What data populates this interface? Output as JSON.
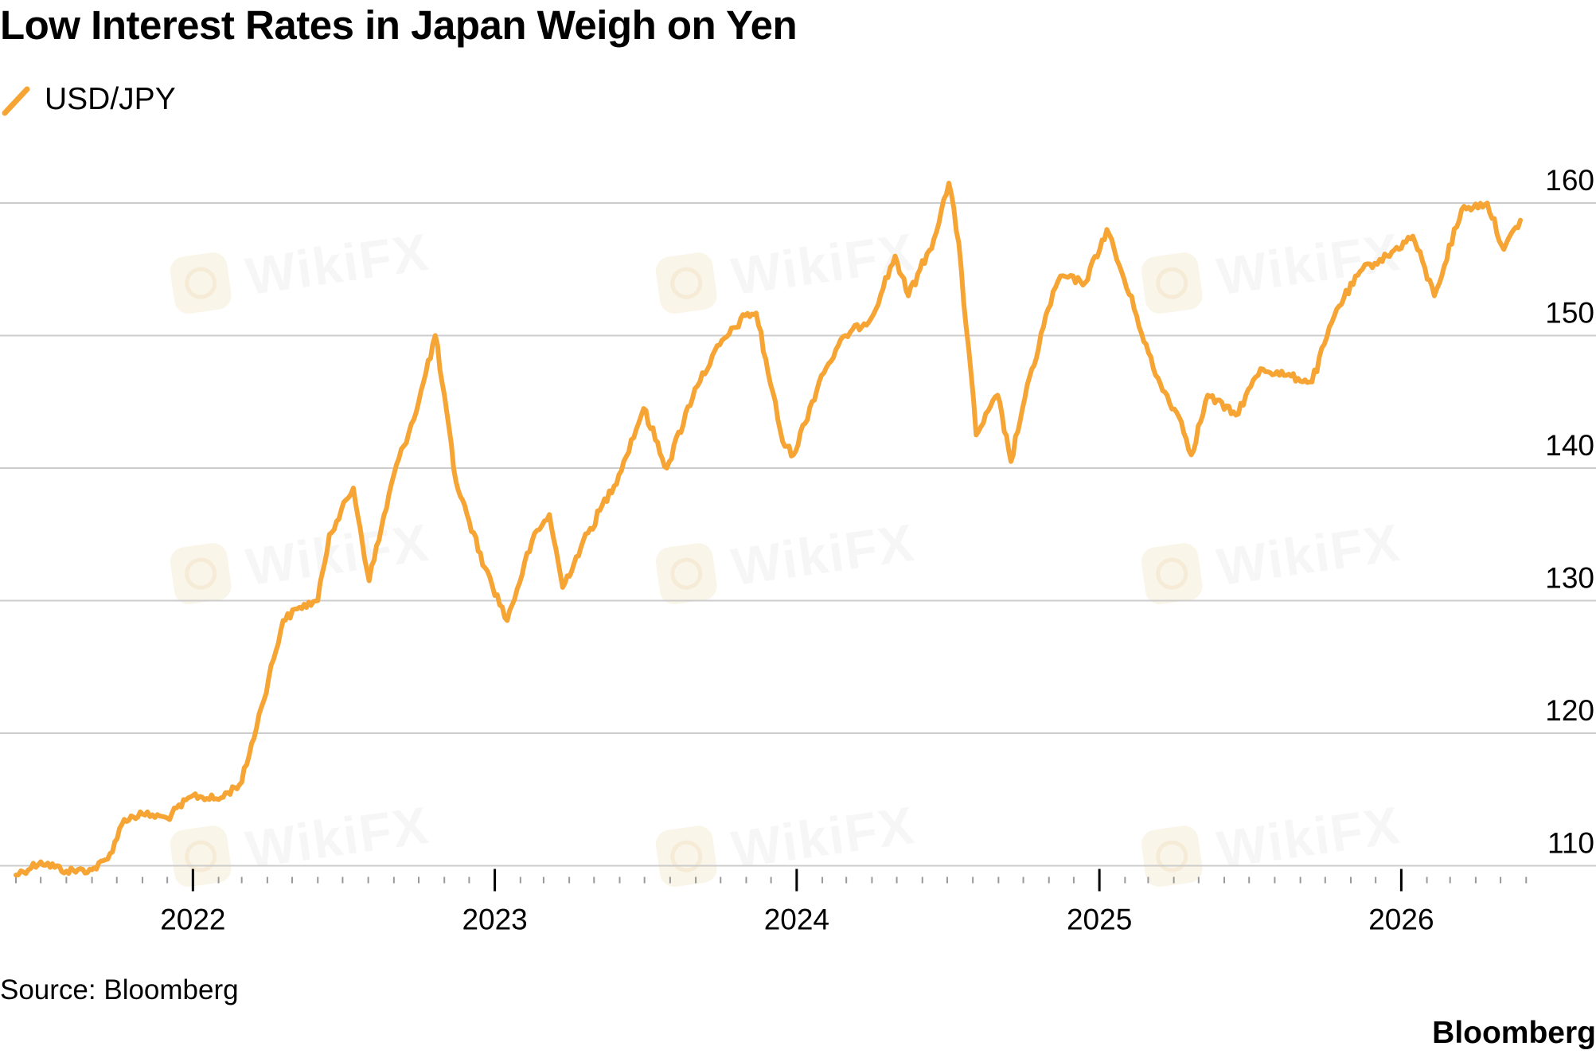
{
  "title": "Low Interest Rates in Japan Weigh on Yen",
  "source": "Source: Bloomberg",
  "brand": "Bloomberg",
  "watermark_text": "WikiFX",
  "colors": {
    "line": "#f6a534",
    "grid": "#cccccc",
    "axis": "#000000",
    "text": "#000000"
  },
  "chart_data": {
    "type": "line",
    "title": "Low Interest Rates in Japan Weigh on Yen",
    "xlabel": "",
    "ylabel": "",
    "y_axis_side": "right",
    "ylim": [
      108,
      162
    ],
    "y_ticks": [
      110,
      120,
      130,
      140,
      150,
      160
    ],
    "x_ticks": [
      "2022",
      "2023",
      "2024",
      "2025",
      "2026"
    ],
    "grid": true,
    "legend_position": "top-left",
    "series": [
      {
        "name": "USD/JPY",
        "color": "#f6a534",
        "x": [
          "2021-06-01",
          "2021-07-01",
          "2021-08-01",
          "2021-09-01",
          "2021-09-20",
          "2021-10-10",
          "2021-11-01",
          "2021-12-01",
          "2022-01-01",
          "2022-02-01",
          "2022-03-01",
          "2022-03-25",
          "2022-04-20",
          "2022-05-10",
          "2022-06-01",
          "2022-06-15",
          "2022-07-14",
          "2022-08-02",
          "2022-09-01",
          "2022-10-01",
          "2022-10-21",
          "2022-11-15",
          "2022-12-01",
          "2022-12-20",
          "2023-01-16",
          "2023-02-15",
          "2023-03-08",
          "2023-03-24",
          "2023-04-15",
          "2023-05-31",
          "2023-06-30",
          "2023-07-28",
          "2023-08-31",
          "2023-09-30",
          "2023-10-31",
          "2023-11-13",
          "2023-12-15",
          "2023-12-28",
          "2024-01-31",
          "2024-02-29",
          "2024-03-31",
          "2024-04-29",
          "2024-05-15",
          "2024-06-15",
          "2024-07-03",
          "2024-07-15",
          "2024-08-05",
          "2024-08-31",
          "2024-09-16",
          "2024-09-30",
          "2024-10-31",
          "2024-11-15",
          "2024-12-15",
          "2025-01-10",
          "2025-02-15",
          "2025-03-10",
          "2025-04-10",
          "2025-04-22",
          "2025-05-12",
          "2025-06-15",
          "2025-07-15",
          "2025-08-15",
          "2025-09-15",
          "2025-10-15",
          "2025-11-15",
          "2025-12-15",
          "2026-01-15",
          "2026-02-10",
          "2026-03-15",
          "2026-04-15",
          "2026-05-05",
          "2026-05-25"
        ],
        "values": [
          109.3,
          110.3,
          109.6,
          109.7,
          110.5,
          113.5,
          113.9,
          113.6,
          115.3,
          115.0,
          116.3,
          122.0,
          128.5,
          129.5,
          130.0,
          135.0,
          138.5,
          131.5,
          139.5,
          145.0,
          150.0,
          139.0,
          136.0,
          132.5,
          128.5,
          134.5,
          136.5,
          131.0,
          134.0,
          139.5,
          144.5,
          140.0,
          146.0,
          149.3,
          151.5,
          151.7,
          142.0,
          141.0,
          147.0,
          150.0,
          151.3,
          156.0,
          153.0,
          157.3,
          161.5,
          157.0,
          142.5,
          145.5,
          140.5,
          144.5,
          152.0,
          154.5,
          154.0,
          158.0,
          151.5,
          147.0,
          143.5,
          141.0,
          145.5,
          144.0,
          147.5,
          147.0,
          146.5,
          152.0,
          155.0,
          156.0,
          157.5,
          153.0,
          159.5,
          160.0,
          156.5,
          158.7
        ]
      }
    ]
  }
}
